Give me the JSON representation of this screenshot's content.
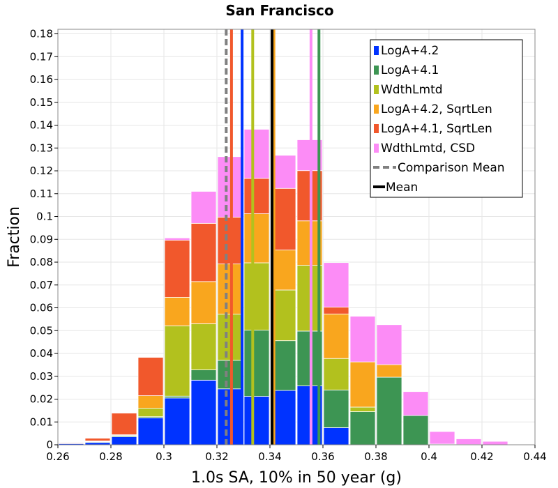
{
  "chart_data": {
    "type": "bar",
    "title": "San Francisco",
    "xlabel": "1.0s SA, 10% in 50 year (g)",
    "ylabel": "Fraction",
    "xlim": [
      0.26,
      0.44
    ],
    "ylim": [
      0,
      0.182
    ],
    "grid": true,
    "legend_position": "top-right",
    "x_ticks": [
      0.26,
      0.28,
      0.3,
      0.32,
      0.34,
      0.36,
      0.38,
      0.4,
      0.42,
      0.44
    ],
    "x_tick_labels": [
      "0.26",
      "0.28",
      "0.3",
      "0.32",
      "0.34",
      "0.36",
      "0.38",
      "0.4",
      "0.42",
      "0.44"
    ],
    "y_ticks": [
      0,
      0.01,
      0.02,
      0.03,
      0.04,
      0.05,
      0.06,
      0.07,
      0.08,
      0.09,
      0.1,
      0.11,
      0.12,
      0.13,
      0.14,
      0.15,
      0.16,
      0.17,
      0.18
    ],
    "y_tick_labels": [
      "0",
      "0.01",
      "0.02",
      "0.03",
      "0.04",
      "0.05",
      "0.06",
      "0.07",
      "0.08",
      "0.09",
      "0.1",
      "0.11",
      "0.12",
      "0.13",
      "0.14",
      "0.15",
      "0.16",
      "0.17",
      "0.18"
    ],
    "bin_width": 0.01,
    "bins": [
      0.26,
      0.27,
      0.28,
      0.29,
      0.3,
      0.31,
      0.32,
      0.33,
      0.34,
      0.35,
      0.36,
      0.37,
      0.38,
      0.39,
      0.4,
      0.41,
      0.42
    ],
    "series": [
      {
        "name": "LogA+4.2",
        "color": "#0033ff",
        "values": [
          0.0005,
          0.001,
          0.0035,
          0.0118,
          0.0205,
          0.0283,
          0.0245,
          0.0212,
          0.0238,
          0.0258,
          0.0075,
          0.0,
          0.0,
          0.0,
          0.0,
          0.0,
          0.0
        ]
      },
      {
        "name": "LogA+4.1",
        "color": "#3d9553",
        "values": [
          0.0002,
          0.0003,
          0.0005,
          0.0005,
          0.0008,
          0.0045,
          0.0125,
          0.029,
          0.0218,
          0.024,
          0.0165,
          0.0145,
          0.0296,
          0.0128,
          0.0003,
          0.0001,
          0.0
        ]
      },
      {
        "name": "WdthLmtd",
        "color": "#b2c11e",
        "values": [
          0.0,
          0.0002,
          0.0002,
          0.0037,
          0.0308,
          0.0202,
          0.0202,
          0.0295,
          0.0222,
          0.0288,
          0.0138,
          0.002,
          0.0,
          0.0,
          0.0,
          0.0,
          0.0
        ]
      },
      {
        "name": "LogA+4.2, SqrtLen",
        "color": "#f9a61e",
        "values": [
          0.0,
          0.0002,
          0.0002,
          0.0055,
          0.0125,
          0.0185,
          0.022,
          0.0215,
          0.0175,
          0.0195,
          0.0195,
          0.0198,
          0.0055,
          0.0,
          0.0,
          0.0,
          0.0
        ]
      },
      {
        "name": "LogA+4.1, SqrtLen",
        "color": "#f1582c",
        "values": [
          0.0003,
          0.0012,
          0.0095,
          0.0168,
          0.025,
          0.0255,
          0.0205,
          0.0155,
          0.027,
          0.022,
          0.003,
          0.0,
          0.0,
          0.0,
          0.0,
          0.0,
          0.0
        ]
      },
      {
        "name": "WdthLmtd, CSD",
        "color": "#fc8cf6",
        "values": [
          0.0,
          0.0001,
          0.0001,
          0.0002,
          0.001,
          0.014,
          0.0265,
          0.0215,
          0.0145,
          0.0135,
          0.0195,
          0.02,
          0.0175,
          0.0105,
          0.0055,
          0.0025,
          0.0015
        ]
      }
    ],
    "lines": [
      {
        "name": "Comparison Mean",
        "x": 0.3235,
        "color": "#808080",
        "style": "dashed"
      },
      {
        "name": "Mean",
        "x": 0.3408,
        "color": "#000000",
        "style": "solid"
      }
    ],
    "series_means": [
      {
        "name": "LogA+4.2",
        "x": 0.3295
      },
      {
        "name": "LogA+4.1",
        "x": 0.3585
      },
      {
        "name": "WdthLmtd",
        "x": 0.3335
      },
      {
        "name": "LogA+4.2, SqrtLen",
        "x": 0.3415
      },
      {
        "name": "LogA+4.1, SqrtLen",
        "x": 0.3255
      },
      {
        "name": "WdthLmtd, CSD",
        "x": 0.3555
      }
    ]
  }
}
